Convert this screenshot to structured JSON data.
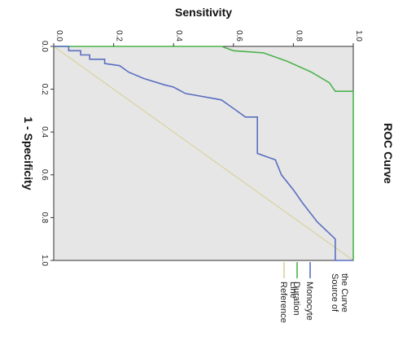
{
  "chart_data": {
    "type": "line",
    "title": "ROC Curve",
    "xlabel": "1 - Specificity",
    "ylabel": "Sensitivity",
    "xlim": [
      0,
      1
    ],
    "ylim": [
      0,
      1
    ],
    "x_ticks": [
      "0.0",
      "0.2",
      "0.4",
      "0.6",
      "0.8",
      "1.0"
    ],
    "y_ticks": [
      "0.0",
      "0.2",
      "0.4",
      "0.6",
      "0.8",
      "1.0"
    ],
    "grid": false,
    "plot_background": "#e6e6e6",
    "legend": {
      "title": "Source of the Curve",
      "placement": "right"
    },
    "series": [
      {
        "name": "Monocyte",
        "color": "#5a6fc0",
        "points": [
          [
            0,
            0
          ],
          [
            0,
            0.05
          ],
          [
            0.02,
            0.05
          ],
          [
            0.02,
            0.09
          ],
          [
            0.04,
            0.09
          ],
          [
            0.04,
            0.12
          ],
          [
            0.06,
            0.12
          ],
          [
            0.06,
            0.17
          ],
          [
            0.08,
            0.17
          ],
          [
            0.09,
            0.22
          ],
          [
            0.12,
            0.25
          ],
          [
            0.15,
            0.3
          ],
          [
            0.18,
            0.37
          ],
          [
            0.19,
            0.4
          ],
          [
            0.22,
            0.44
          ],
          [
            0.24,
            0.52
          ],
          [
            0.25,
            0.56
          ],
          [
            0.27,
            0.58
          ],
          [
            0.3,
            0.61
          ],
          [
            0.33,
            0.64
          ],
          [
            0.33,
            0.68
          ],
          [
            0.5,
            0.68
          ],
          [
            0.53,
            0.74
          ],
          [
            0.6,
            0.76
          ],
          [
            0.67,
            0.8
          ],
          [
            0.73,
            0.83
          ],
          [
            0.82,
            0.88
          ],
          [
            0.9,
            0.94
          ],
          [
            1.0,
            0.94
          ],
          [
            1.0,
            1.0
          ]
        ]
      },
      {
        "name": "Duration",
        "color": "#4cb34c",
        "points": [
          [
            0,
            0
          ],
          [
            0,
            0.56
          ],
          [
            0.02,
            0.6
          ],
          [
            0.03,
            0.7
          ],
          [
            0.07,
            0.78
          ],
          [
            0.12,
            0.86
          ],
          [
            0.17,
            0.92
          ],
          [
            0.21,
            0.94
          ],
          [
            0.21,
            1.0
          ],
          [
            1.0,
            1.0
          ]
        ]
      },
      {
        "name": "Reference Line",
        "color": "#d9d2a0",
        "points": [
          [
            0,
            0
          ],
          [
            1.0,
            1.0
          ]
        ]
      }
    ]
  }
}
